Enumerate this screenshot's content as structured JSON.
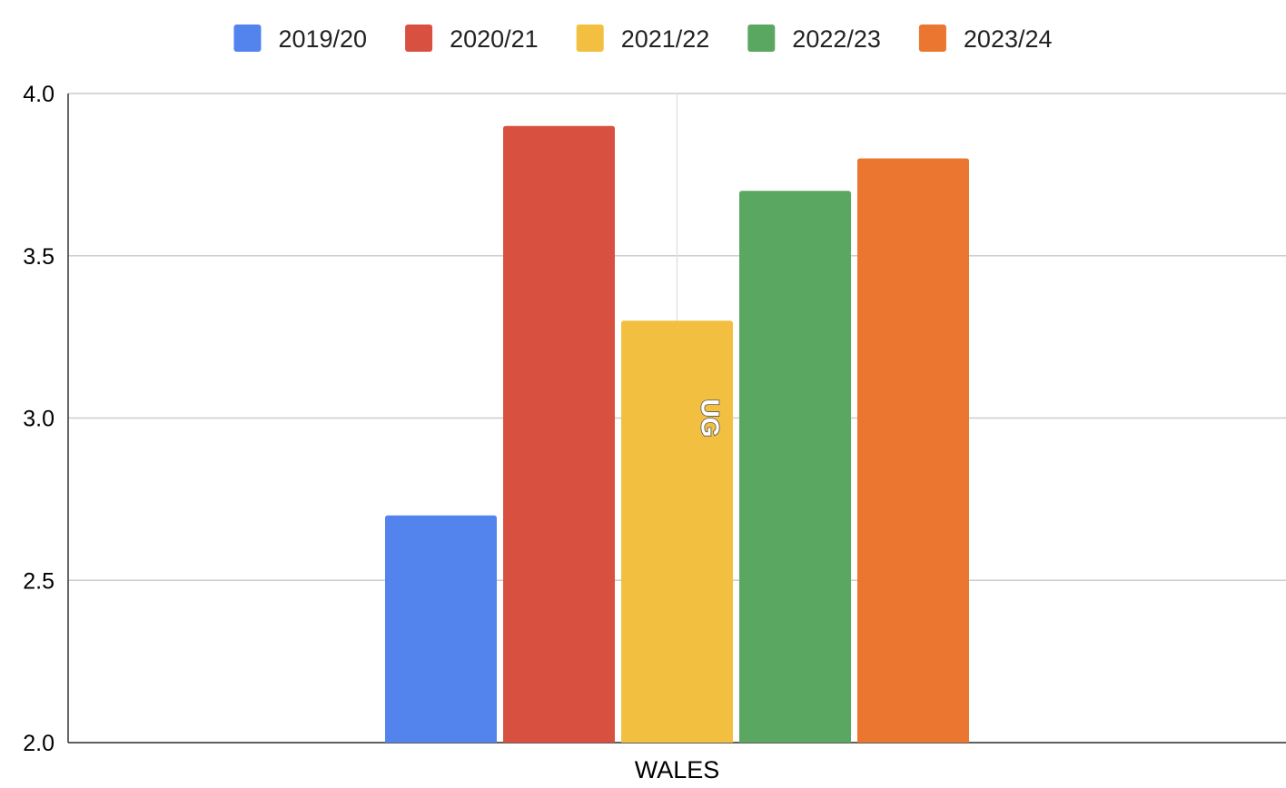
{
  "chart_data": {
    "type": "bar",
    "categories": [
      "WALES"
    ],
    "series": [
      {
        "name": "2019/20",
        "values": [
          2.7
        ],
        "color": "#5384ed"
      },
      {
        "name": "2020/21",
        "values": [
          3.9
        ],
        "color": "#d85140"
      },
      {
        "name": "2021/22",
        "values": [
          3.3
        ],
        "color": "#f2bf41"
      },
      {
        "name": "2022/23",
        "values": [
          3.7
        ],
        "color": "#59a761"
      },
      {
        "name": "2023/24",
        "values": [
          3.8
        ],
        "color": "#ea7630"
      }
    ],
    "ylim": [
      2.0,
      4.0
    ],
    "yticks": [
      "2.0",
      "2.5",
      "3.0",
      "3.5",
      "4.0"
    ],
    "ytick_values": [
      2.0,
      2.5,
      3.0,
      3.5,
      4.0
    ],
    "grid": true,
    "legend_position": "top",
    "annotation": "UG",
    "annotation_series": "2021/22",
    "title": "",
    "xlabel": "",
    "ylabel": ""
  }
}
